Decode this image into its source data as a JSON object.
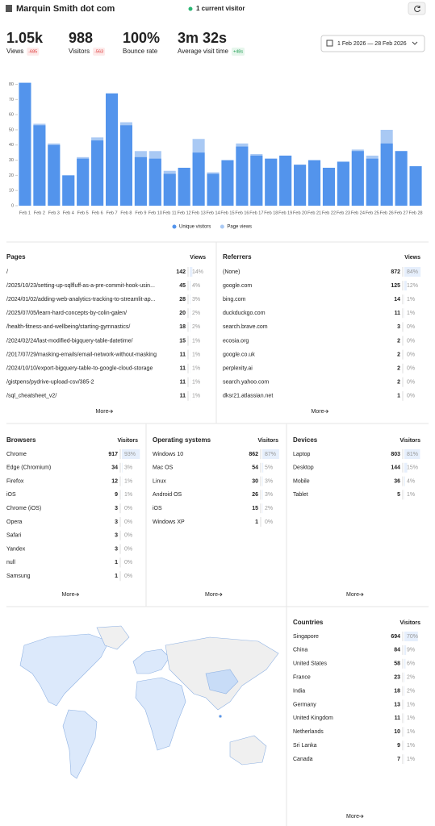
{
  "header": {
    "site": "Marquin Smith dot com",
    "current": "1 current visitor",
    "date_range": "1 Feb 2026 — 28 Feb 2026"
  },
  "stats": [
    {
      "value": "1.05k",
      "label": "Views",
      "change": "-685"
    },
    {
      "value": "988",
      "label": "Visitors",
      "change": "-563"
    },
    {
      "value": "100%",
      "label": "Bounce rate"
    },
    {
      "value": "3m 32s",
      "label": "Average visit time",
      "change": "+48s"
    }
  ],
  "chart_data": {
    "type": "bar",
    "categories": [
      "Feb 1",
      "Feb 2",
      "Feb 3",
      "Feb 4",
      "Feb 5",
      "Feb 6",
      "Feb 7",
      "Feb 8",
      "Feb 9",
      "Feb 10",
      "Feb 11",
      "Feb 12",
      "Feb 13",
      "Feb 14",
      "Feb 15",
      "Feb 16",
      "Feb 17",
      "Feb 18",
      "Feb 19",
      "Feb 20",
      "Feb 21",
      "Feb 22",
      "Feb 23",
      "Feb 24",
      "Feb 25",
      "Feb 26",
      "Feb 27",
      "Feb 28"
    ],
    "series": [
      {
        "name": "Page views",
        "color": "#a9c9f4",
        "values": [
          81,
          54,
          41,
          20,
          32,
          45,
          74,
          55,
          36,
          36,
          23,
          25,
          44,
          22,
          30,
          41,
          34,
          31,
          33,
          27,
          30,
          25,
          29,
          37,
          33,
          50,
          36,
          26
        ]
      },
      {
        "name": "Unique visitors",
        "color": "#5394ec",
        "values": [
          81,
          53,
          40,
          20,
          31,
          43,
          74,
          53,
          32,
          31,
          21,
          25,
          35,
          21,
          30,
          39,
          33,
          31,
          33,
          27,
          30,
          25,
          29,
          36,
          31,
          41,
          36,
          26
        ]
      }
    ],
    "ylim": [
      0,
      84
    ],
    "yticks": [
      0,
      10,
      20,
      30,
      40,
      50,
      60,
      70,
      80
    ],
    "grid": false
  },
  "pages": {
    "title": "Pages",
    "column": "Views",
    "more": "More",
    "rows": [
      [
        "/",
        142,
        "14%"
      ],
      [
        "/2025/10/23/setting-up-sqlfluff-as-a-pre-commit-hook-usin...",
        45,
        "4%"
      ],
      [
        "/2024/01/02/adding-web-analytics-tracking-to-streamlit-ap...",
        28,
        "3%"
      ],
      [
        "/2025/07/05/learn-hard-concepts-by-colin-galen/",
        20,
        "2%"
      ],
      [
        "/health-fitness-and-wellbeing/starting-gymnastics/",
        18,
        "2%"
      ],
      [
        "/2024/02/24/last-modified-bigquery-table-datetime/",
        15,
        "1%"
      ],
      [
        "/2017/07/29/masking-emails/email-network-without-masking",
        11,
        "1%"
      ],
      [
        "/2024/10/10/export-bigquery-table-to-google-cloud-storage",
        11,
        "1%"
      ],
      [
        "/gistpens/pydrive-upload-csv/385-2",
        11,
        "1%"
      ],
      [
        "/sql_cheatsheet_v2/",
        11,
        "1%"
      ]
    ]
  },
  "referrers": {
    "title": "Referrers",
    "column": "Views",
    "more": "More",
    "rows": [
      [
        "(None)",
        872,
        "84%"
      ],
      [
        "google.com",
        125,
        "12%"
      ],
      [
        "bing.com",
        14,
        "1%"
      ],
      [
        "duckduckgo.com",
        11,
        "1%"
      ],
      [
        "search.brave.com",
        3,
        "0%"
      ],
      [
        "ecosia.org",
        2,
        "0%"
      ],
      [
        "google.co.uk",
        2,
        "0%"
      ],
      [
        "perplexity.ai",
        2,
        "0%"
      ],
      [
        "search.yahoo.com",
        2,
        "0%"
      ],
      [
        "dksr21.atlassian.net",
        1,
        "0%"
      ]
    ]
  },
  "browsers": {
    "title": "Browsers",
    "column": "Visitors",
    "more": "More",
    "rows": [
      [
        "Chrome",
        917,
        "93%"
      ],
      [
        "Edge (Chromium)",
        34,
        "3%"
      ],
      [
        "Firefox",
        12,
        "1%"
      ],
      [
        "iOS",
        9,
        "1%"
      ],
      [
        "Chrome (iOS)",
        3,
        "0%"
      ],
      [
        "Opera",
        3,
        "0%"
      ],
      [
        "Safari",
        3,
        "0%"
      ],
      [
        "Yandex",
        3,
        "0%"
      ],
      [
        "null",
        1,
        "0%"
      ],
      [
        "Samsung",
        1,
        "0%"
      ]
    ]
  },
  "operating_systems": {
    "title": "Operating systems",
    "column": "Visitors",
    "more": "More",
    "rows": [
      [
        "Windows 10",
        862,
        "87%"
      ],
      [
        "Mac OS",
        54,
        "5%"
      ],
      [
        "Linux",
        30,
        "3%"
      ],
      [
        "Android OS",
        26,
        "3%"
      ],
      [
        "iOS",
        15,
        "2%"
      ],
      [
        "Windows XP",
        1,
        "0%"
      ]
    ]
  },
  "devices": {
    "title": "Devices",
    "column": "Visitors",
    "more": "More",
    "rows": [
      [
        "Laptop",
        803,
        "81%"
      ],
      [
        "Desktop",
        144,
        "15%"
      ],
      [
        "Mobile",
        36,
        "4%"
      ],
      [
        "Tablet",
        5,
        "1%"
      ]
    ]
  },
  "countries": {
    "title": "Countries",
    "column": "Visitors",
    "more": "More",
    "rows": [
      [
        "Singapore",
        694,
        "70%"
      ],
      [
        "China",
        84,
        "9%"
      ],
      [
        "United States",
        58,
        "6%"
      ],
      [
        "France",
        23,
        "2%"
      ],
      [
        "India",
        18,
        "2%"
      ],
      [
        "Germany",
        13,
        "1%"
      ],
      [
        "United Kingdom",
        11,
        "1%"
      ],
      [
        "Netherlands",
        10,
        "1%"
      ],
      [
        "Sri Lanka",
        9,
        "1%"
      ],
      [
        "Canada",
        7,
        "1%"
      ]
    ]
  }
}
